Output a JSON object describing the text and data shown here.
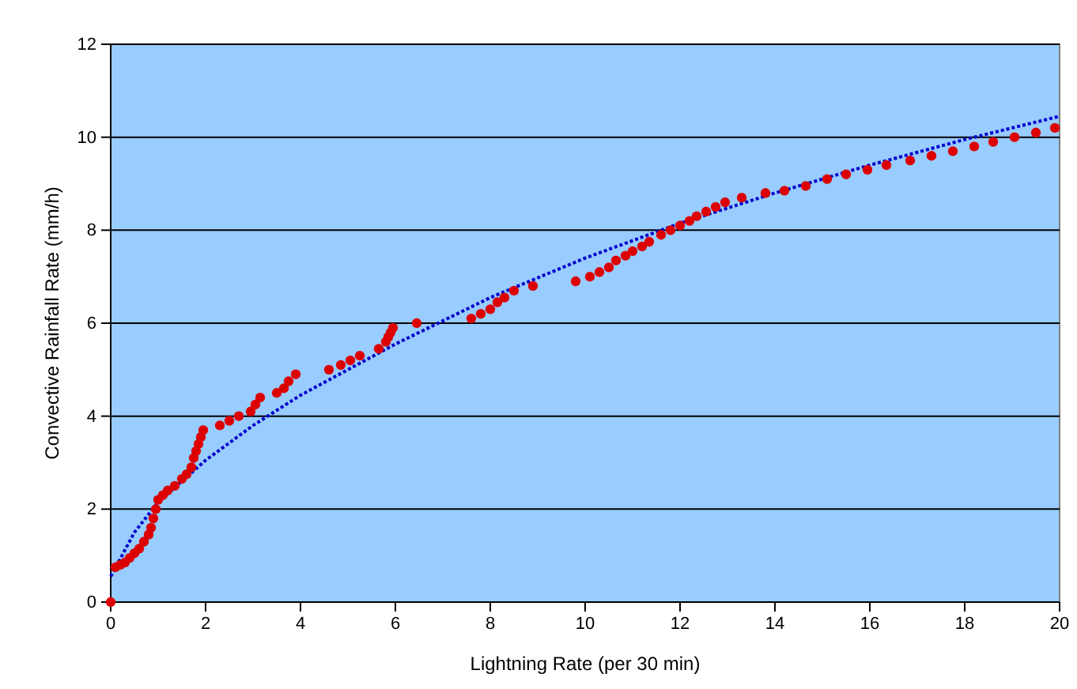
{
  "chart_data": {
    "type": "scatter",
    "xlabel": "Lightning Rate (per 30 min)",
    "ylabel": "Convective Rainfall Rate (mm/h)",
    "xlim": [
      0,
      20
    ],
    "xticks": [
      0,
      2,
      4,
      6,
      8,
      10,
      12,
      14,
      16,
      18,
      20
    ],
    "ylim": [
      0,
      12
    ],
    "yticks": [
      0,
      2,
      4,
      6,
      8,
      10,
      12
    ],
    "grid": "y",
    "series": [
      {
        "color": "#dd0000",
        "marker": "circle",
        "x": [
          0,
          0.1,
          0.2,
          0.3,
          0.4,
          0.5,
          0.6,
          0.7,
          0.8,
          0.85,
          0.9,
          0.95,
          1.0,
          1.1,
          1.2,
          1.35,
          1.5,
          1.6,
          1.7,
          1.75,
          1.8,
          1.85,
          1.9,
          1.95,
          2.3,
          2.5,
          2.7,
          2.95,
          3.05,
          3.15,
          3.5,
          3.65,
          3.75,
          3.9,
          4.6,
          4.85,
          5.05,
          5.25,
          5.65,
          5.8,
          5.85,
          5.9,
          5.95,
          6.45,
          7.6,
          7.8,
          8.0,
          8.15,
          8.3,
          8.5,
          8.9,
          9.8,
          10.1,
          10.3,
          10.5,
          10.65,
          10.85,
          11.0,
          11.2,
          11.35,
          11.6,
          11.8,
          12.0,
          12.2,
          12.35,
          12.55,
          12.75,
          12.95,
          13.3,
          13.8,
          14.2,
          14.65,
          15.1,
          15.5,
          15.95,
          16.35,
          16.85,
          17.3,
          17.75,
          18.2,
          18.6,
          19.05,
          19.5,
          19.9
        ],
        "values": [
          0,
          0.75,
          0.8,
          0.85,
          0.95,
          1.05,
          1.15,
          1.3,
          1.45,
          1.6,
          1.8,
          2.0,
          2.2,
          2.3,
          2.4,
          2.5,
          2.65,
          2.75,
          2.9,
          3.1,
          3.25,
          3.4,
          3.55,
          3.7,
          3.8,
          3.9,
          4.0,
          4.1,
          4.25,
          4.4,
          4.5,
          4.6,
          4.75,
          4.9,
          5.0,
          5.1,
          5.2,
          5.3,
          5.45,
          5.6,
          5.7,
          5.8,
          5.9,
          6.0,
          6.1,
          6.2,
          6.3,
          6.45,
          6.55,
          6.7,
          6.8,
          6.9,
          7.0,
          7.1,
          7.2,
          7.35,
          7.45,
          7.55,
          7.65,
          7.75,
          7.9,
          8.0,
          8.1,
          8.2,
          8.3,
          8.4,
          8.5,
          8.6,
          8.7,
          8.8,
          8.85,
          8.95,
          9.1,
          9.2,
          9.3,
          9.4,
          9.5,
          9.6,
          9.7,
          9.8,
          9.9,
          10.0,
          10.1,
          10.2
        ]
      },
      {
        "type": "line",
        "color": "#0000cc",
        "line_style": "dotted",
        "x": [
          0,
          0.5,
          1,
          2,
          3,
          4,
          5,
          6,
          8,
          10,
          12,
          14,
          16,
          18,
          20
        ],
        "values": [
          0.55,
          1.5,
          2.15,
          3.05,
          3.8,
          4.45,
          5.0,
          5.55,
          6.55,
          7.4,
          8.15,
          8.8,
          9.4,
          9.95,
          10.45
        ]
      }
    ]
  }
}
